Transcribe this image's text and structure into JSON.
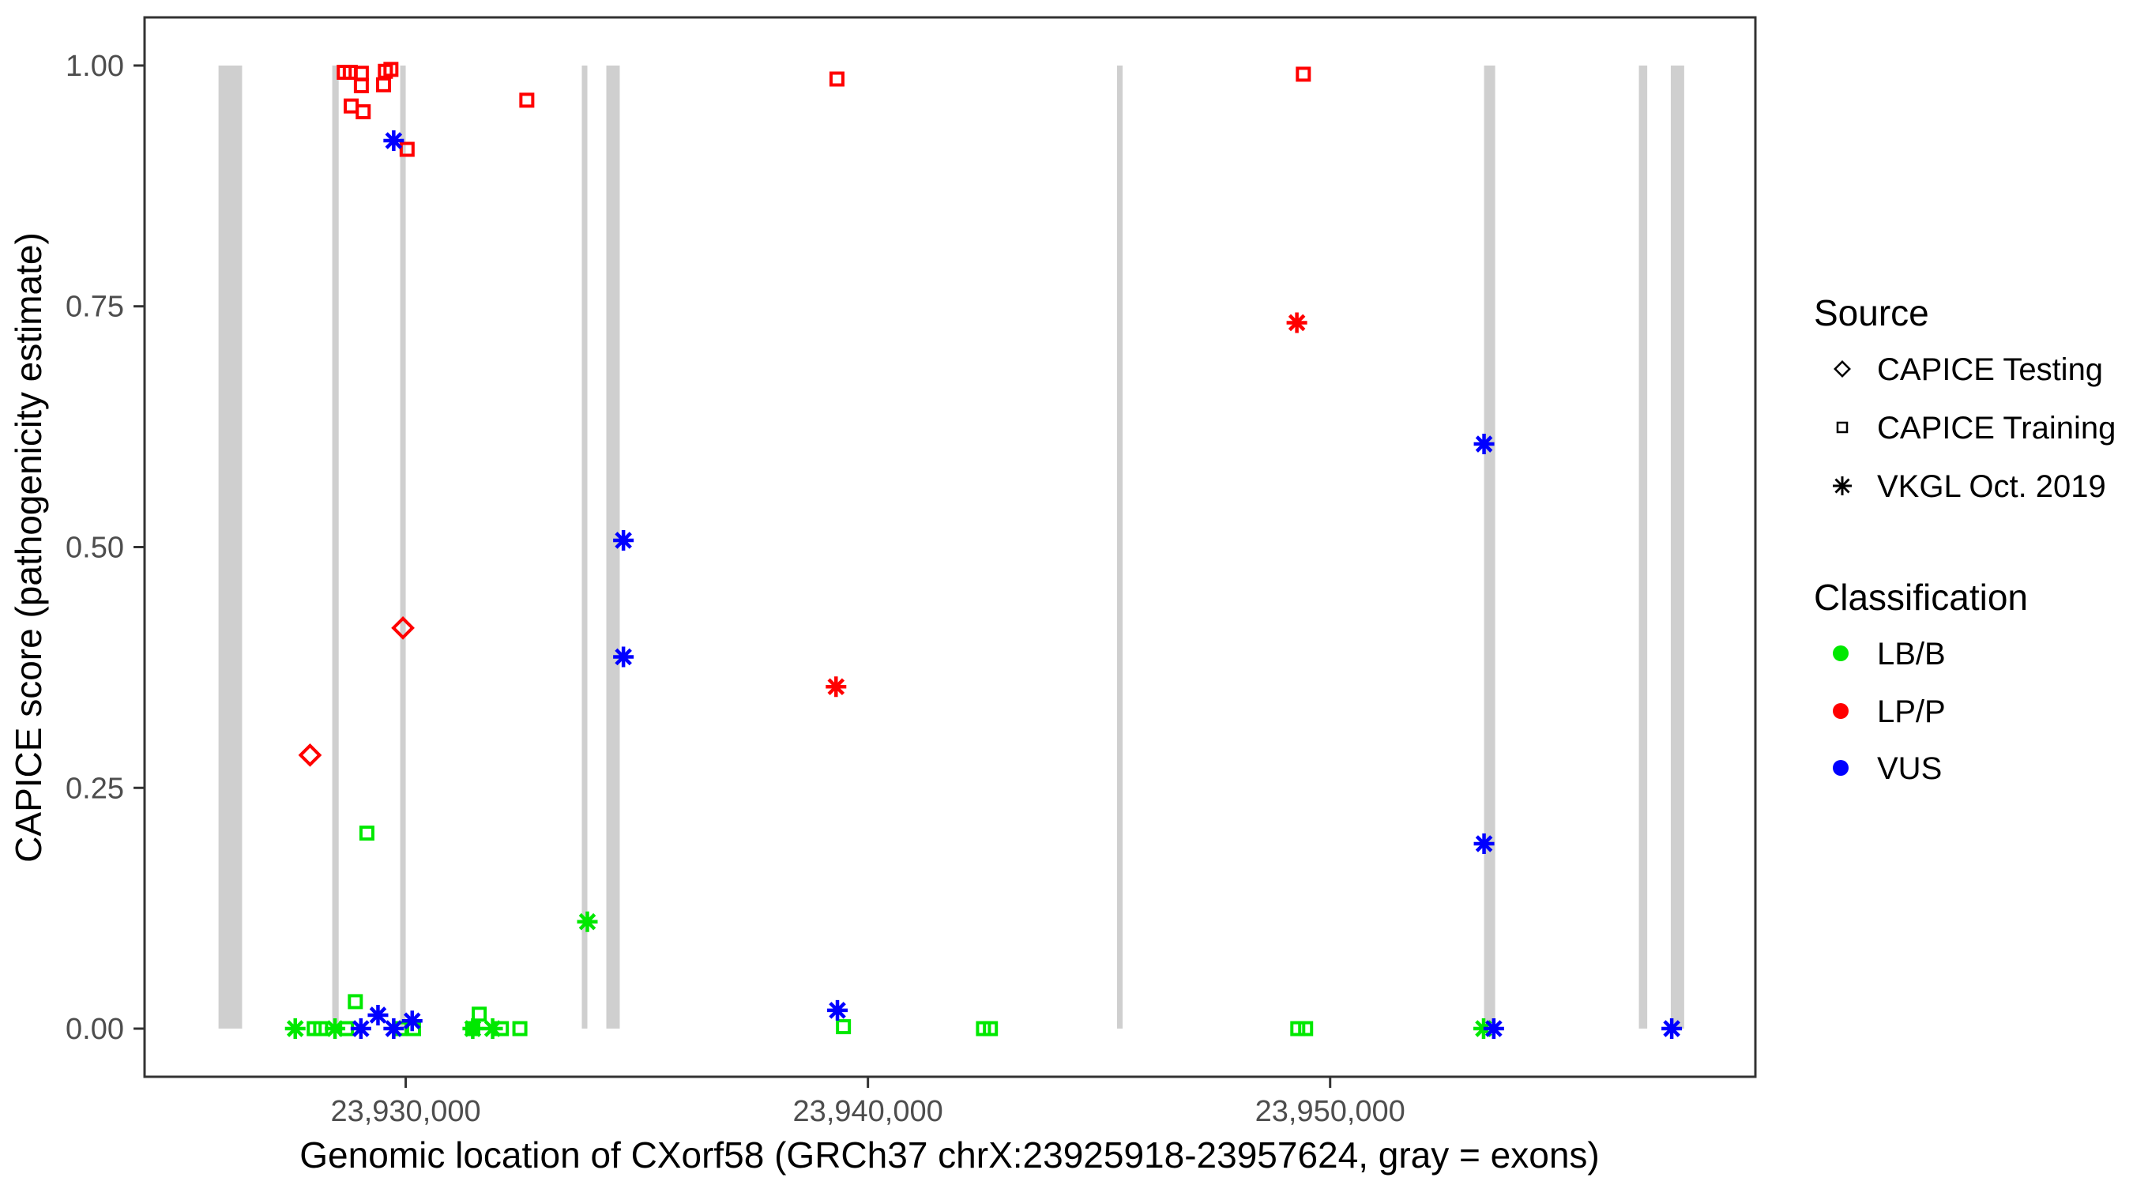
{
  "chart_data": {
    "type": "scatter",
    "title": "",
    "xlabel": "Genomic location of CXorf58 (GRCh37 chrX:23925918-23957624, gray = exons)",
    "ylabel": "CAPICE score (pathogenicity estimate)",
    "xlim": [
      23924350,
      23959200
    ],
    "ylim": [
      0,
      1
    ],
    "grid": "off",
    "x_ticks": [
      {
        "value": 23930000,
        "label": "23,930,000"
      },
      {
        "value": 23940000,
        "label": "23,940,000"
      },
      {
        "value": 23950000,
        "label": "23,950,000"
      }
    ],
    "y_ticks": [
      {
        "value": 0.0,
        "label": "0.00"
      },
      {
        "value": 0.25,
        "label": "0.25"
      },
      {
        "value": 0.5,
        "label": "0.50"
      },
      {
        "value": 0.75,
        "label": "0.75"
      },
      {
        "value": 1.0,
        "label": "1.00"
      }
    ],
    "exon_color": "#cfcfcf",
    "exons": [
      [
        23925950,
        23926460
      ],
      [
        23928410,
        23928550
      ],
      [
        23929880,
        23930000
      ],
      [
        23933810,
        23933930
      ],
      [
        23934340,
        23934630
      ],
      [
        23945390,
        23945510
      ],
      [
        23953330,
        23953570
      ],
      [
        23956680,
        23956860
      ],
      [
        23957370,
        23957660
      ]
    ],
    "class_colors": {
      "LB/B": "#00e800",
      "LP/P": "#ff0000",
      "VUS": "#0000ff"
    },
    "series": [
      {
        "name": "CAPICE Training",
        "shape": "square",
        "points": [
          {
            "x": 23928670,
            "y": 0.993,
            "class": "LP/P"
          },
          {
            "x": 23928800,
            "y": 0.993,
            "class": "LP/P"
          },
          {
            "x": 23929040,
            "y": 0.992,
            "class": "LP/P"
          },
          {
            "x": 23929040,
            "y": 0.979,
            "class": "LP/P"
          },
          {
            "x": 23928820,
            "y": 0.958,
            "class": "LP/P"
          },
          {
            "x": 23929080,
            "y": 0.952,
            "class": "LP/P"
          },
          {
            "x": 23929560,
            "y": 0.994,
            "class": "LP/P"
          },
          {
            "x": 23929680,
            "y": 0.996,
            "class": "LP/P"
          },
          {
            "x": 23929520,
            "y": 0.98,
            "class": "LP/P"
          },
          {
            "x": 23930030,
            "y": 0.913,
            "class": "LP/P"
          },
          {
            "x": 23932620,
            "y": 0.964,
            "class": "LP/P"
          },
          {
            "x": 23939330,
            "y": 0.986,
            "class": "LP/P"
          },
          {
            "x": 23949420,
            "y": 0.991,
            "class": "LP/P"
          },
          {
            "x": 23929160,
            "y": 0.203,
            "class": "LB/B"
          },
          {
            "x": 23928910,
            "y": 0.028,
            "class": "LB/B"
          },
          {
            "x": 23928020,
            "y": 0.0,
            "class": "LB/B"
          },
          {
            "x": 23928160,
            "y": 0.0,
            "class": "LB/B"
          },
          {
            "x": 23928720,
            "y": 0.0,
            "class": "LB/B"
          },
          {
            "x": 23929880,
            "y": 0.0,
            "class": "LB/B"
          },
          {
            "x": 23930170,
            "y": 0.0,
            "class": "LB/B"
          },
          {
            "x": 23931450,
            "y": 0.0,
            "class": "LB/B"
          },
          {
            "x": 23931590,
            "y": 0.015,
            "class": "LB/B"
          },
          {
            "x": 23932070,
            "y": 0.0,
            "class": "LB/B"
          },
          {
            "x": 23932470,
            "y": 0.0,
            "class": "LB/B"
          },
          {
            "x": 23939470,
            "y": 0.002,
            "class": "LB/B"
          },
          {
            "x": 23942500,
            "y": 0.0,
            "class": "LB/B"
          },
          {
            "x": 23942650,
            "y": 0.0,
            "class": "LB/B"
          },
          {
            "x": 23949300,
            "y": 0.0,
            "class": "LB/B"
          },
          {
            "x": 23949470,
            "y": 0.0,
            "class": "LB/B"
          }
        ]
      },
      {
        "name": "CAPICE Testing",
        "shape": "diamond",
        "points": [
          {
            "x": 23927930,
            "y": 0.284,
            "class": "LP/P"
          },
          {
            "x": 23929940,
            "y": 0.416,
            "class": "LP/P"
          }
        ]
      },
      {
        "name": "VKGL Oct. 2019",
        "shape": "asterisk",
        "points": [
          {
            "x": 23927610,
            "y": 0.0,
            "class": "LB/B"
          },
          {
            "x": 23928470,
            "y": 0.0,
            "class": "LB/B"
          },
          {
            "x": 23931450,
            "y": 0.0,
            "class": "LB/B"
          },
          {
            "x": 23931880,
            "y": 0.0,
            "class": "LB/B"
          },
          {
            "x": 23933930,
            "y": 0.111,
            "class": "LB/B"
          },
          {
            "x": 23953320,
            "y": 0.0,
            "class": "LB/B"
          },
          {
            "x": 23939310,
            "y": 0.355,
            "class": "LP/P"
          },
          {
            "x": 23949280,
            "y": 0.733,
            "class": "LP/P"
          },
          {
            "x": 23929740,
            "y": 0.922,
            "class": "VUS"
          },
          {
            "x": 23929030,
            "y": 0.0,
            "class": "VUS"
          },
          {
            "x": 23929400,
            "y": 0.014,
            "class": "VUS"
          },
          {
            "x": 23929740,
            "y": 0.0,
            "class": "VUS"
          },
          {
            "x": 23930140,
            "y": 0.008,
            "class": "VUS"
          },
          {
            "x": 23934710,
            "y": 0.507,
            "class": "VUS"
          },
          {
            "x": 23934710,
            "y": 0.386,
            "class": "VUS"
          },
          {
            "x": 23939340,
            "y": 0.019,
            "class": "VUS"
          },
          {
            "x": 23953330,
            "y": 0.607,
            "class": "VUS"
          },
          {
            "x": 23953330,
            "y": 0.192,
            "class": "VUS"
          },
          {
            "x": 23953540,
            "y": 0.0,
            "class": "VUS"
          },
          {
            "x": 23957390,
            "y": 0.0,
            "class": "VUS"
          }
        ]
      }
    ]
  },
  "axes": {
    "x_title": "Genomic location of CXorf58 (GRCh37 chrX:23925918-23957624, gray = exons)",
    "y_title": "CAPICE score (pathogenicity estimate)"
  },
  "legend": {
    "source_title": "Source",
    "source_items": [
      {
        "label": "CAPICE Testing",
        "shape": "diamond"
      },
      {
        "label": "CAPICE Training",
        "shape": "square"
      },
      {
        "label": "VKGL Oct. 2019",
        "shape": "asterisk"
      }
    ],
    "classification_title": "Classification",
    "classification_items": [
      {
        "label": "LB/B",
        "color": "#00e800"
      },
      {
        "label": "LP/P",
        "color": "#ff0000"
      },
      {
        "label": "VUS",
        "color": "#0000ff"
      }
    ]
  }
}
